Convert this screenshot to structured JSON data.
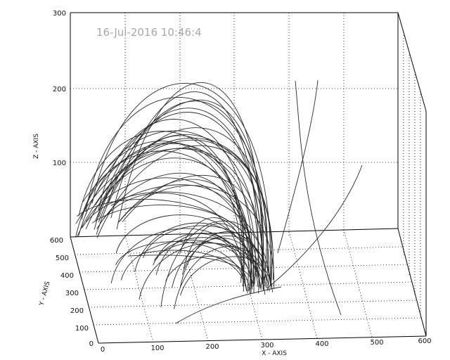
{
  "timestamp": "16-Jul-2016 10:46:4",
  "chart_data": {
    "type": "line",
    "projection": "3d-surface-plot",
    "grid": true,
    "x_axis": {
      "label": "X - AXIS",
      "range": [
        0,
        600
      ],
      "ticks": [
        "0",
        "100",
        "200",
        "300",
        "400",
        "500",
        "600"
      ]
    },
    "y_axis": {
      "label": "Y - AXIS",
      "range": [
        0,
        600
      ],
      "ticks": [
        "0",
        "100",
        "200",
        "300",
        "400",
        "500",
        "600"
      ]
    },
    "z_axis": {
      "label": "Z - AXIS",
      "range": [
        0,
        300
      ],
      "ticks": [
        "300",
        "200",
        "100"
      ]
    },
    "series_description": "magnetic field lines (loops and open lines) rooted near the base plane",
    "line_count": 60
  }
}
